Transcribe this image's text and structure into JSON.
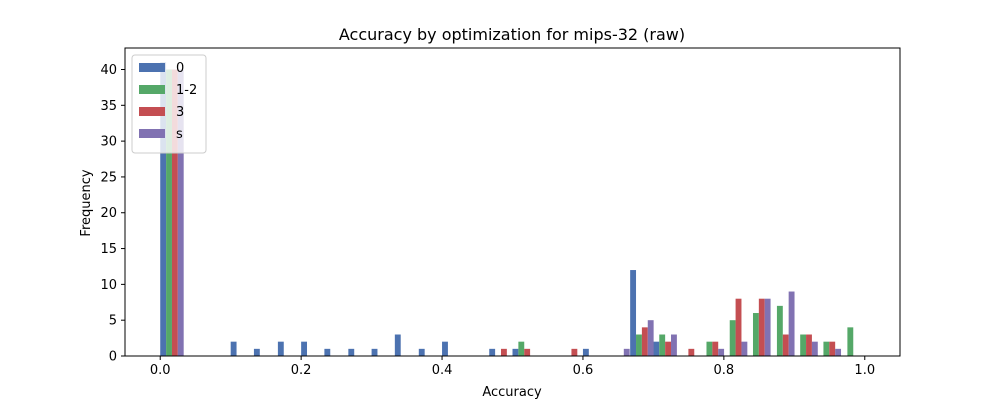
{
  "chart_data": {
    "type": "bar",
    "title": "Accuracy by optimization for mips-32 (raw)",
    "xlabel": "Accuracy",
    "ylabel": "Frequency",
    "xlim": [
      -0.05,
      1.05
    ],
    "ylim": [
      0,
      43
    ],
    "xticks": [
      "0.0",
      "0.2",
      "0.4",
      "0.6",
      "0.8",
      "1.0"
    ],
    "yticks": [
      "0",
      "5",
      "10",
      "15",
      "20",
      "25",
      "30",
      "35",
      "40"
    ],
    "legend_position": "top-left",
    "grid": false,
    "series": [
      {
        "name": "0",
        "color": "#4C72B0",
        "points": [
          [
            0.0,
            41
          ],
          [
            0.1,
            2
          ],
          [
            0.133,
            1
          ],
          [
            0.167,
            2
          ],
          [
            0.2,
            2
          ],
          [
            0.233,
            1
          ],
          [
            0.267,
            1
          ],
          [
            0.3,
            1
          ],
          [
            0.333,
            3
          ],
          [
            0.367,
            1
          ],
          [
            0.4,
            2
          ],
          [
            0.467,
            1
          ],
          [
            0.5,
            1
          ],
          [
            0.6,
            1
          ],
          [
            0.667,
            12
          ],
          [
            0.7,
            2
          ]
        ]
      },
      {
        "name": "1-2",
        "color": "#55A868",
        "points": [
          [
            0.0,
            40
          ],
          [
            0.5,
            2
          ],
          [
            0.667,
            3
          ],
          [
            0.7,
            3
          ],
          [
            0.767,
            2
          ],
          [
            0.8,
            5
          ],
          [
            0.833,
            6
          ],
          [
            0.867,
            7
          ],
          [
            0.9,
            3
          ],
          [
            0.933,
            2
          ],
          [
            0.967,
            4
          ]
        ]
      },
      {
        "name": "3",
        "color": "#C44E52",
        "points": [
          [
            0.0,
            40
          ],
          [
            0.467,
            1
          ],
          [
            0.5,
            1
          ],
          [
            0.567,
            1
          ],
          [
            0.667,
            4
          ],
          [
            0.7,
            2
          ],
          [
            0.733,
            1
          ],
          [
            0.767,
            2
          ],
          [
            0.8,
            8
          ],
          [
            0.833,
            8
          ],
          [
            0.867,
            3
          ],
          [
            0.9,
            3
          ],
          [
            0.933,
            2
          ]
        ]
      },
      {
        "name": "s",
        "color": "#8172B2",
        "points": [
          [
            0.0,
            40
          ],
          [
            0.633,
            1
          ],
          [
            0.667,
            5
          ],
          [
            0.7,
            3
          ],
          [
            0.767,
            1
          ],
          [
            0.8,
            2
          ],
          [
            0.833,
            8
          ],
          [
            0.867,
            9
          ],
          [
            0.9,
            2
          ],
          [
            0.933,
            1
          ]
        ]
      }
    ]
  }
}
